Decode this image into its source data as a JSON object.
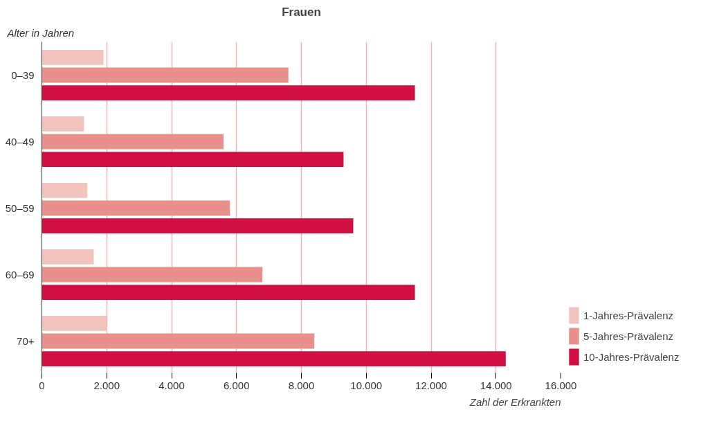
{
  "chart_data": {
    "type": "bar",
    "orientation": "horizontal",
    "title": "Frauen",
    "ylabel": "Alter in Jahren",
    "xlabel": "Zahl der Erkrankten",
    "categories": [
      "0–39",
      "40–49",
      "50–59",
      "60–69",
      "70+"
    ],
    "series": [
      {
        "name": "1-Jahres-Prävalenz",
        "color": "#f2c4bd",
        "values": [
          1900,
          1300,
          1400,
          1600,
          2000
        ]
      },
      {
        "name": "5-Jahres-Prävalenz",
        "color": "#e8908c",
        "values": [
          7600,
          5600,
          5800,
          6800,
          8400
        ]
      },
      {
        "name": "10-Jahres-Prävalenz",
        "color": "#d20f41",
        "values": [
          11500,
          9300,
          9600,
          11500,
          14300
        ]
      }
    ],
    "xlim": [
      0,
      16000
    ],
    "xticks": [
      0,
      {
        "value": 2000,
        "label": "2.000"
      },
      {
        "value": 4000,
        "label": "4.000"
      },
      {
        "value": 6000,
        "label": "6.000"
      },
      {
        "value": 8000,
        "label": "8.000"
      },
      {
        "value": 10000,
        "label": "10.000"
      },
      {
        "value": 12000,
        "label": "12.000"
      },
      {
        "value": 14000,
        "label": "14.000"
      },
      {
        "value": 16000,
        "label": "16.000"
      }
    ],
    "grid": "x",
    "legend": "bottom right"
  }
}
